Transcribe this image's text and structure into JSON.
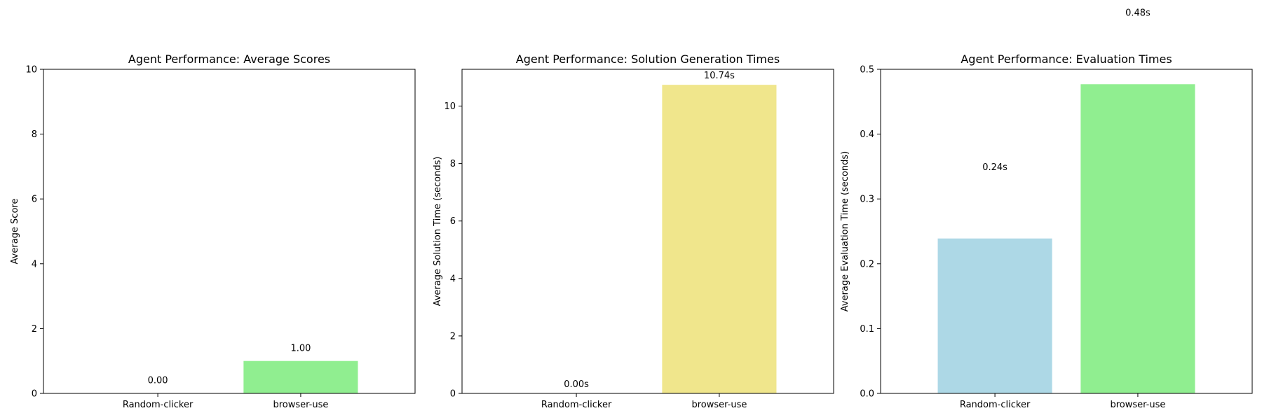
{
  "chart_data": [
    {
      "type": "bar",
      "title": "Agent Performance: Average Scores",
      "xlabel": "",
      "ylabel": "Average Score",
      "categories": [
        "Random-clicker",
        "browser-use"
      ],
      "values": [
        0.0,
        1.0
      ],
      "value_labels": [
        "0.00",
        "1.00"
      ],
      "colors": [
        "#add8e6",
        "#90ee90"
      ],
      "ylim": [
        0,
        10
      ],
      "yticks": [
        0,
        2,
        4,
        6,
        8,
        10
      ],
      "ytick_labels": [
        "0",
        "2",
        "4",
        "6",
        "8",
        "10"
      ],
      "label_offsets": [
        0.2,
        0.2
      ],
      "grid": false
    },
    {
      "type": "bar",
      "title": "Agent Performance: Solution Generation Times",
      "xlabel": "",
      "ylabel": "Average Solution Time (seconds)",
      "categories": [
        "Random-clicker",
        "browser-use"
      ],
      "values": [
        0.0,
        10.74
      ],
      "value_labels": [
        "0.00s",
        "10.74s"
      ],
      "colors": [
        "#add8e6",
        "#f0e68c"
      ],
      "ylim": [
        0,
        11.28
      ],
      "yticks": [
        0,
        2,
        4,
        6,
        8,
        10
      ],
      "ytick_labels": [
        "0",
        "2",
        "4",
        "6",
        "8",
        "10"
      ],
      "label_offsets": [
        0.1,
        0.1
      ],
      "grid": false
    },
    {
      "type": "bar",
      "title": "Agent Performance: Evaluation Times",
      "xlabel": "",
      "ylabel": "Average Evaluation Time (seconds)",
      "categories": [
        "Random-clicker",
        "browser-use"
      ],
      "values": [
        0.239,
        0.477
      ],
      "value_labels": [
        "0.24s",
        "0.48s"
      ],
      "colors": [
        "#add8e6",
        "#90ee90"
      ],
      "ylim": [
        0,
        0.5
      ],
      "yticks": [
        0,
        0.1,
        0.2,
        0.3,
        0.4,
        0.5
      ],
      "ytick_labels": [
        "0.0",
        "0.1",
        "0.2",
        "0.3",
        "0.4",
        "0.5"
      ],
      "label_offsets": [
        0.1,
        0.1
      ],
      "grid": false
    }
  ]
}
